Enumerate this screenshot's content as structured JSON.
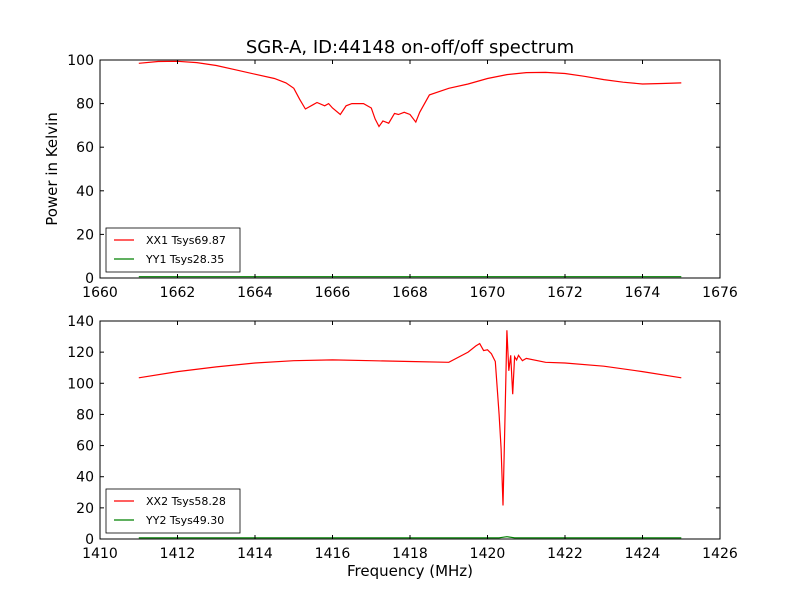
{
  "figure": {
    "title": "SGR-A, ID:44148 on-off/off spectrum",
    "ylabel": "Power in Kelvin",
    "xlabel": "Frequency (MHz)"
  },
  "chart_data": [
    {
      "type": "line",
      "xlim": [
        1660,
        1676
      ],
      "ylim": [
        0,
        100
      ],
      "xticks": [
        "1660",
        "1662",
        "1664",
        "1666",
        "1668",
        "1670",
        "1672",
        "1674",
        "1676"
      ],
      "yticks": [
        "0",
        "20",
        "40",
        "60",
        "80",
        "100"
      ],
      "legend_position": "lower-left",
      "grid": false,
      "series": [
        {
          "name": "XX1 Tsys69.87",
          "color": "#ff0000",
          "x": [
            1661.0,
            1661.5,
            1662.0,
            1662.5,
            1663.0,
            1663.5,
            1664.0,
            1664.5,
            1664.8,
            1665.0,
            1665.15,
            1665.3,
            1665.5,
            1665.6,
            1665.8,
            1665.9,
            1666.0,
            1666.2,
            1666.35,
            1666.5,
            1666.8,
            1667.0,
            1667.1,
            1667.2,
            1667.3,
            1667.45,
            1667.6,
            1667.7,
            1667.85,
            1668.0,
            1668.15,
            1668.25,
            1668.5,
            1669.0,
            1669.5,
            1670.0,
            1670.5,
            1671.0,
            1671.5,
            1672.0,
            1672.5,
            1673.0,
            1673.5,
            1674.0,
            1674.5,
            1675.0
          ],
          "values": [
            98.5,
            99.3,
            99.4,
            98.8,
            97.5,
            95.5,
            93.5,
            91.5,
            89.5,
            87.0,
            82.0,
            77.5,
            79.5,
            80.5,
            79.0,
            80.0,
            78.0,
            75.0,
            79.0,
            80.0,
            80.0,
            78.0,
            73.0,
            69.5,
            72.0,
            71.0,
            75.5,
            75.0,
            76.0,
            75.0,
            71.5,
            76.0,
            84.0,
            87.0,
            89.0,
            91.5,
            93.3,
            94.2,
            94.3,
            93.8,
            92.5,
            91.0,
            89.8,
            89.0,
            89.2,
            89.5
          ]
        },
        {
          "name": "YY1 Tsys28.35",
          "color": "#008000",
          "x": [
            1661.0,
            1675.0
          ],
          "values": [
            0.6,
            0.6
          ]
        }
      ]
    },
    {
      "type": "line",
      "xlim": [
        1410,
        1426
      ],
      "ylim": [
        0,
        140
      ],
      "xticks": [
        "1410",
        "1412",
        "1414",
        "1416",
        "1418",
        "1420",
        "1422",
        "1424",
        "1426"
      ],
      "yticks": [
        "0",
        "20",
        "40",
        "60",
        "80",
        "100",
        "120",
        "140"
      ],
      "legend_position": "lower-left",
      "grid": false,
      "series": [
        {
          "name": "XX2 Tsys58.28",
          "color": "#ff0000",
          "x": [
            1411.0,
            1412.0,
            1413.0,
            1414.0,
            1415.0,
            1416.0,
            1417.0,
            1418.0,
            1419.0,
            1419.5,
            1419.7,
            1419.8,
            1419.9,
            1420.0,
            1420.1,
            1420.2,
            1420.3,
            1420.35,
            1420.4,
            1420.45,
            1420.5,
            1420.55,
            1420.6,
            1420.65,
            1420.7,
            1420.75,
            1420.8,
            1420.9,
            1421.0,
            1421.5,
            1422.0,
            1423.0,
            1424.0,
            1425.0
          ],
          "values": [
            103.5,
            107.5,
            110.5,
            113.0,
            114.5,
            115.0,
            114.5,
            114.0,
            113.5,
            120.0,
            124.0,
            125.5,
            121.0,
            121.5,
            119.0,
            114.0,
            80.0,
            58.0,
            21.5,
            75.0,
            134.0,
            108.0,
            118.0,
            93.0,
            117.0,
            115.0,
            118.0,
            114.5,
            116.0,
            113.5,
            113.0,
            111.0,
            107.5,
            103.5
          ]
        },
        {
          "name": "YY2 Tsys49.30",
          "color": "#008000",
          "x": [
            1411.0,
            1420.3,
            1420.5,
            1420.7,
            1425.0
          ],
          "values": [
            0.8,
            0.8,
            1.5,
            0.8,
            0.8
          ]
        }
      ]
    }
  ]
}
